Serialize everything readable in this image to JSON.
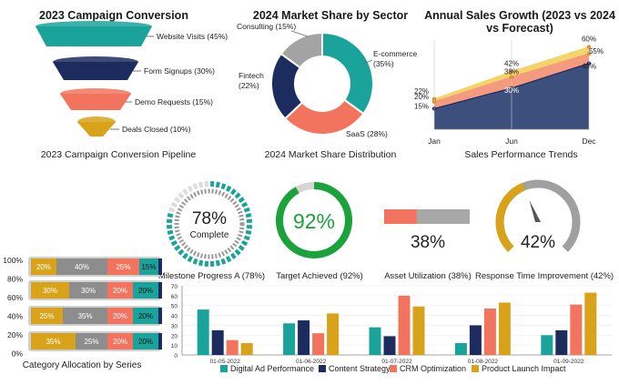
{
  "funnel": {
    "title": "2023 Campaign Conversion",
    "caption": "2023 Campaign Conversion Pipeline",
    "colors": [
      "#1aa39b",
      "#1c2c5e",
      "#f2745e",
      "#d8a21a"
    ],
    "chart_data": {
      "type": "funnel",
      "stages": [
        "Website Visits (45%)",
        "Form Signups (30%)",
        "Demo Requests (15%)",
        "Deals Closed (10%)"
      ],
      "values": [
        45,
        30,
        15,
        10
      ]
    }
  },
  "donut": {
    "title": "2024 Market Share by Sector",
    "caption": "2024 Market Share Distribution",
    "colors": [
      "#1aa39b",
      "#f2745e",
      "#1c2c5e",
      "#a3a3a3"
    ],
    "chart_data": {
      "type": "pie",
      "labels": [
        "E-commerce\n(35%)",
        "SaaS (28%)",
        "Fintech\n(22%)",
        "Consulting (15%)"
      ],
      "values": [
        35,
        28,
        22,
        15
      ]
    }
  },
  "area": {
    "title": "Annual Sales Growth (2023 vs 2024 vs Forecast)",
    "caption": "Sales Performance Trends",
    "colors": [
      "#f3d36a",
      "#f49a7e",
      "#3d4f7c"
    ],
    "chart_data": {
      "type": "area",
      "x": [
        "Jan",
        "Jun",
        "Dec"
      ],
      "series": [
        {
          "values": [
            22,
            42,
            60
          ]
        },
        {
          "values": [
            20,
            38,
            55
          ]
        },
        {
          "values": [
            15,
            30,
            48
          ]
        }
      ],
      "point_labels": [
        [
          "22%",
          "42%",
          "60%"
        ],
        [
          "20%",
          "38%",
          "55%"
        ],
        [
          "15%",
          "30%",
          "48%"
        ]
      ],
      "ylim": [
        0,
        65
      ]
    }
  },
  "gauges": {
    "milestone": {
      "value_text": "78%",
      "sub": "Complete",
      "caption": "Milestone Progress A (78%)",
      "value": 78
    },
    "target": {
      "value_text": "92%",
      "caption": "Target Achieved (92%)",
      "value": 92
    },
    "asset": {
      "value_text": "38%",
      "caption": "Asset Utilization (38%)",
      "value": 38
    },
    "response": {
      "value_text": "42%",
      "caption": "Response Time Improvement (42%)",
      "value": 42
    }
  },
  "stacked": {
    "caption": "Category Allocation by Series",
    "colors": [
      "#d8a21a",
      "#8d8d8d",
      "#f2745e",
      "#1aa39b"
    ],
    "chart_data": {
      "type": "bar",
      "orientation": "horizontal",
      "stacked": true,
      "rows": [
        {
          "labels": [
            "20%",
            "40%",
            "25%",
            "15%"
          ],
          "values": [
            20,
            40,
            25,
            15
          ]
        },
        {
          "labels": [
            "30%",
            "30%",
            "20%",
            "20%"
          ],
          "values": [
            30,
            30,
            20,
            20
          ]
        },
        {
          "labels": [
            "25%",
            "35%",
            "20%",
            "20%"
          ],
          "values": [
            25,
            35,
            20,
            20
          ]
        },
        {
          "labels": [
            "35%",
            "25%",
            "20%",
            "20%"
          ],
          "values": [
            35,
            25,
            20,
            20
          ]
        }
      ],
      "axis_ticks": [
        "100%",
        "80%",
        "60%",
        "40%",
        "20%",
        "0%"
      ]
    }
  },
  "grouped": {
    "chart_data": {
      "type": "bar",
      "categories": [
        "01-05-2022",
        "01-06-2022",
        "01-07-2022",
        "01-08-2022",
        "01-09-2022"
      ],
      "series": [
        {
          "name": "Digital Ad Performance",
          "color": "#1aa39b",
          "values": [
            46,
            32,
            28,
            12,
            20
          ]
        },
        {
          "name": "Content Strategy",
          "color": "#1c2c5e",
          "values": [
            25,
            35,
            19,
            30,
            25
          ]
        },
        {
          "name": "CRM Optimization",
          "color": "#f2745e",
          "values": [
            15,
            22,
            60,
            47,
            51
          ]
        },
        {
          "name": "Product Launch Impact",
          "color": "#d8a21a",
          "values": [
            12,
            42,
            49,
            53,
            63
          ]
        }
      ],
      "ylim": [
        0,
        70
      ],
      "yticks": [
        "0",
        "10",
        "20",
        "30",
        "40",
        "50",
        "60",
        "70"
      ]
    }
  }
}
